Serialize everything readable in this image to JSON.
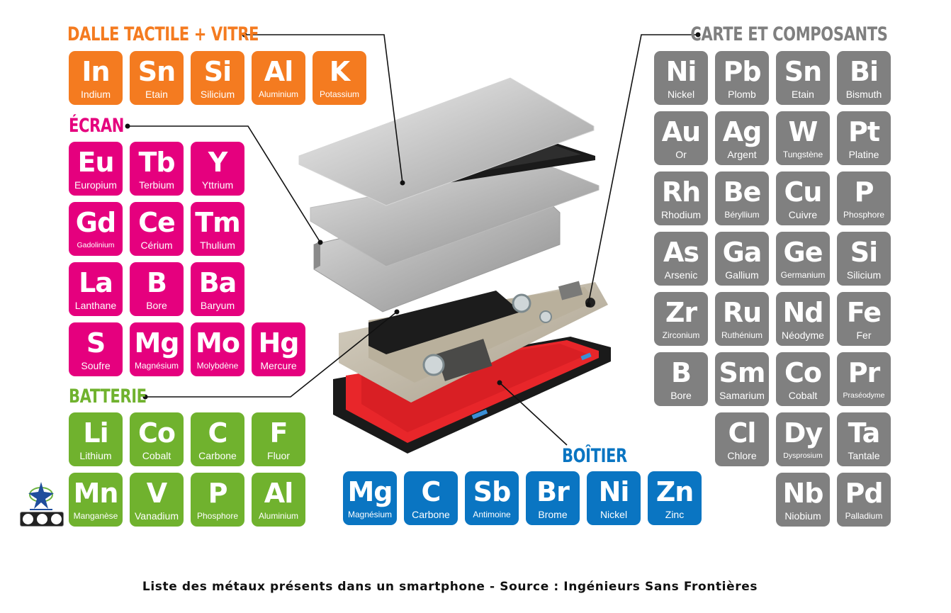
{
  "colors": {
    "dalle": "#f47b20",
    "ecran": "#e5007e",
    "batterie": "#70b22e",
    "boitier": "#0a75c2",
    "carte": "#808080"
  },
  "groups": {
    "dalle": {
      "title": "DALLE TACTILE + VITRE",
      "elements": [
        {
          "symbol": "In",
          "name": "Indium"
        },
        {
          "symbol": "Sn",
          "name": "Etain"
        },
        {
          "symbol": "Si",
          "name": "Silicium"
        },
        {
          "symbol": "Al",
          "name": "Aluminium"
        },
        {
          "symbol": "K",
          "name": "Potassium"
        }
      ]
    },
    "ecran": {
      "title": "ÉCRAN",
      "elements": [
        {
          "symbol": "Eu",
          "name": "Europium"
        },
        {
          "symbol": "Tb",
          "name": "Terbium"
        },
        {
          "symbol": "Y",
          "name": "Yttrium"
        },
        {
          "symbol": "Gd",
          "name": "Gadolinium"
        },
        {
          "symbol": "Ce",
          "name": "Cérium"
        },
        {
          "symbol": "Tm",
          "name": "Thulium"
        },
        {
          "symbol": "La",
          "name": "Lanthane"
        },
        {
          "symbol": "B",
          "name": "Bore"
        },
        {
          "symbol": "Ba",
          "name": "Baryum"
        },
        {
          "symbol": "S",
          "name": "Soufre"
        },
        {
          "symbol": "Mg",
          "name": "Magnésium"
        },
        {
          "symbol": "Mo",
          "name": "Molybdène"
        },
        {
          "symbol": "Hg",
          "name": "Mercure"
        }
      ]
    },
    "batterie": {
      "title": "BATTERIE",
      "elements": [
        {
          "symbol": "Li",
          "name": "Lithium"
        },
        {
          "symbol": "Co",
          "name": "Cobalt"
        },
        {
          "symbol": "C",
          "name": "Carbone"
        },
        {
          "symbol": "F",
          "name": "Fluor"
        },
        {
          "symbol": "Mn",
          "name": "Manganèse"
        },
        {
          "symbol": "V",
          "name": "Vanadium"
        },
        {
          "symbol": "P",
          "name": "Phosphore"
        },
        {
          "symbol": "Al",
          "name": "Aluminium"
        }
      ]
    },
    "boitier": {
      "title": "BOÎTIER",
      "elements": [
        {
          "symbol": "Mg",
          "name": "Magnésium"
        },
        {
          "symbol": "C",
          "name": "Carbone"
        },
        {
          "symbol": "Sb",
          "name": "Antimoine"
        },
        {
          "symbol": "Br",
          "name": "Brome"
        },
        {
          "symbol": "Ni",
          "name": "Nickel"
        },
        {
          "symbol": "Zn",
          "name": "Zinc"
        }
      ]
    },
    "carte": {
      "title": "CARTE ET COMPOSANTS",
      "elements": [
        {
          "symbol": "Ni",
          "name": "Nickel"
        },
        {
          "symbol": "Pb",
          "name": "Plomb"
        },
        {
          "symbol": "Sn",
          "name": "Etain"
        },
        {
          "symbol": "Bi",
          "name": "Bismuth"
        },
        {
          "symbol": "Au",
          "name": "Or"
        },
        {
          "symbol": "Ag",
          "name": "Argent"
        },
        {
          "symbol": "W",
          "name": "Tungstène"
        },
        {
          "symbol": "Pt",
          "name": "Platine"
        },
        {
          "symbol": "Rh",
          "name": "Rhodium"
        },
        {
          "symbol": "Be",
          "name": "Béryllium"
        },
        {
          "symbol": "Cu",
          "name": "Cuivre"
        },
        {
          "symbol": "P",
          "name": "Phosphore"
        },
        {
          "symbol": "As",
          "name": "Arsenic"
        },
        {
          "symbol": "Ga",
          "name": "Gallium"
        },
        {
          "symbol": "Ge",
          "name": "Germanium"
        },
        {
          "symbol": "Si",
          "name": "Silicium"
        },
        {
          "symbol": "Zr",
          "name": "Zirconium"
        },
        {
          "symbol": "Ru",
          "name": "Ruthénium"
        },
        {
          "symbol": "Nd",
          "name": "Néodyme"
        },
        {
          "symbol": "Fe",
          "name": "Fer"
        },
        {
          "symbol": "B",
          "name": "Bore"
        },
        {
          "symbol": "Sm",
          "name": "Samarium"
        },
        {
          "symbol": "Co",
          "name": "Cobalt"
        },
        {
          "symbol": "Pr",
          "name": "Praséodyme"
        },
        {
          "symbol": "Cl",
          "name": "Chlore"
        },
        {
          "symbol": "Dy",
          "name": "Dysprosium"
        },
        {
          "symbol": "Ta",
          "name": "Tantale"
        },
        {
          "symbol": "Nb",
          "name": "Niobium"
        },
        {
          "symbol": "Pd",
          "name": "Palladium"
        }
      ]
    }
  },
  "caption": "Liste des métaux présents dans un smartphone - Source : Ingénieurs Sans Frontières",
  "icons": [
    "isf-logo-icon",
    "creative-commons-icon"
  ]
}
